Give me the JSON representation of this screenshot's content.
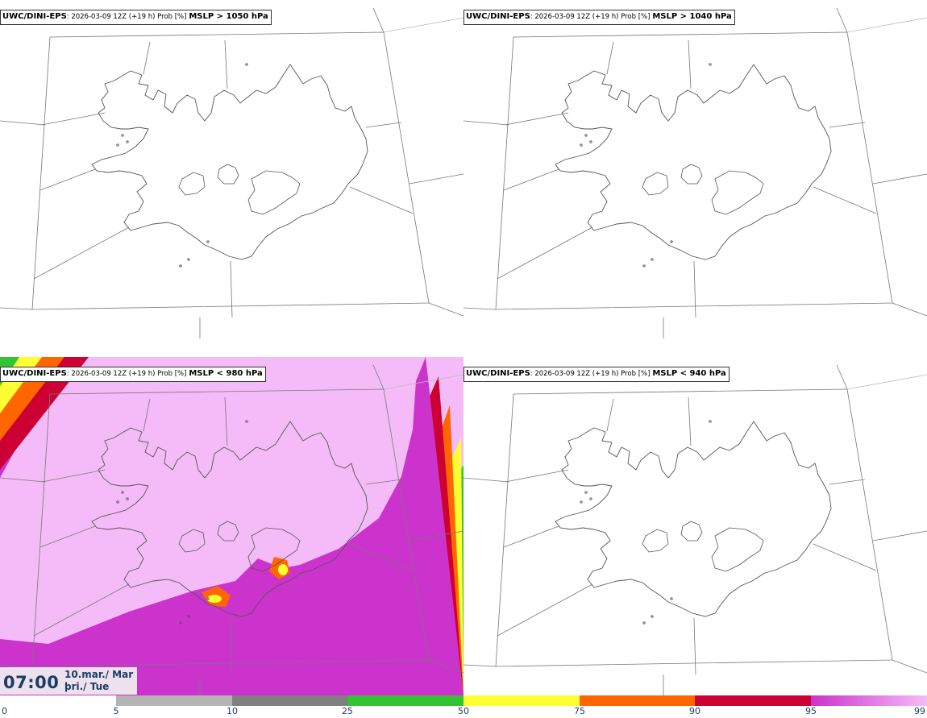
{
  "panels": [
    {
      "brand": "UWC/DINI-EPS",
      "meta": ": 2026-03-09 12Z (+19 h) Prob [%]",
      "variable": "MSLP > 1050 hPa"
    },
    {
      "brand": "UWC/DINI-EPS",
      "meta": ": 2026-03-09 12Z (+19 h) Prob [%]",
      "variable": "MSLP > 1040 hPa"
    },
    {
      "brand": "UWC/DINI-EPS",
      "meta": ": 2026-03-09 12Z (+19 h) Prob [%]",
      "variable": "MSLP < 980 hPa"
    },
    {
      "brand": "UWC/DINI-EPS",
      "meta": ": 2026-03-09 12Z (+19 h) Prob [%]",
      "variable": "MSLP < 940 hPa"
    }
  ],
  "valid_time": {
    "time": "07:00",
    "date_line1": "10.mar./ Mar",
    "date_line2": "þri./ Tue"
  },
  "legend": {
    "ticks": [
      "0",
      "5",
      "10",
      "25",
      "50",
      "75",
      "90",
      "95",
      "99"
    ],
    "colors": [
      "#ffffff",
      "#b4b4b4",
      "#808080",
      "#33c433",
      "#ffff33",
      "#ff6600",
      "#cc0033",
      "#cc33cc",
      "#f5bbf9"
    ]
  }
}
